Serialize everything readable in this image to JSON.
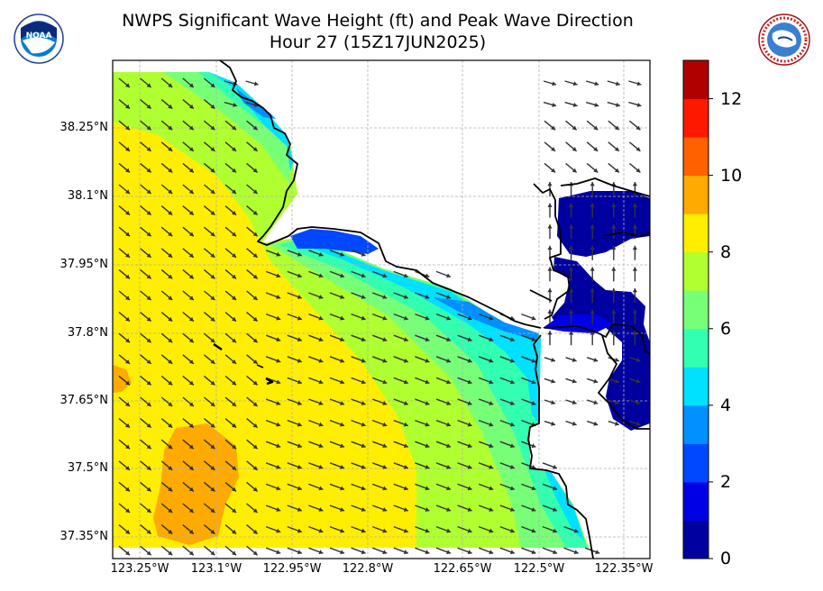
{
  "title_line1": "NWPS Significant Wave Height (ft) and Peak Wave Direction",
  "title_line2": "Hour 27 (15Z17JUN2025)",
  "logos": {
    "left": "noaa-logo",
    "right": "national-weather-service-logo",
    "right_text": "NATIONAL WEATHER SERVICE"
  },
  "lat_labels": [
    "38.25°N",
    "38.1°N",
    "37.95°N",
    "37.8°N",
    "37.65°N",
    "37.5°N",
    "37.35°N"
  ],
  "lon_labels": [
    "123.25°W",
    "123.1°W",
    "122.95°W",
    "122.8°W",
    "122.65°W",
    "122.5°W",
    "122.35°W"
  ],
  "colorbar": {
    "tick_labels": [
      "0",
      "2",
      "4",
      "6",
      "8",
      "10",
      "12"
    ],
    "min": 0,
    "max": 13,
    "step": 1,
    "colors": [
      "#0000a0",
      "#0000e6",
      "#0048ff",
      "#0090ff",
      "#00e0ff",
      "#33ffb0",
      "#78ff78",
      "#b0ff30",
      "#ffee00",
      "#ffaa00",
      "#ff6000",
      "#ff1800",
      "#b00000"
    ]
  },
  "colors": {
    "grid": "#b0b0b0",
    "coast": "#000000",
    "arrow": "#333333"
  }
}
